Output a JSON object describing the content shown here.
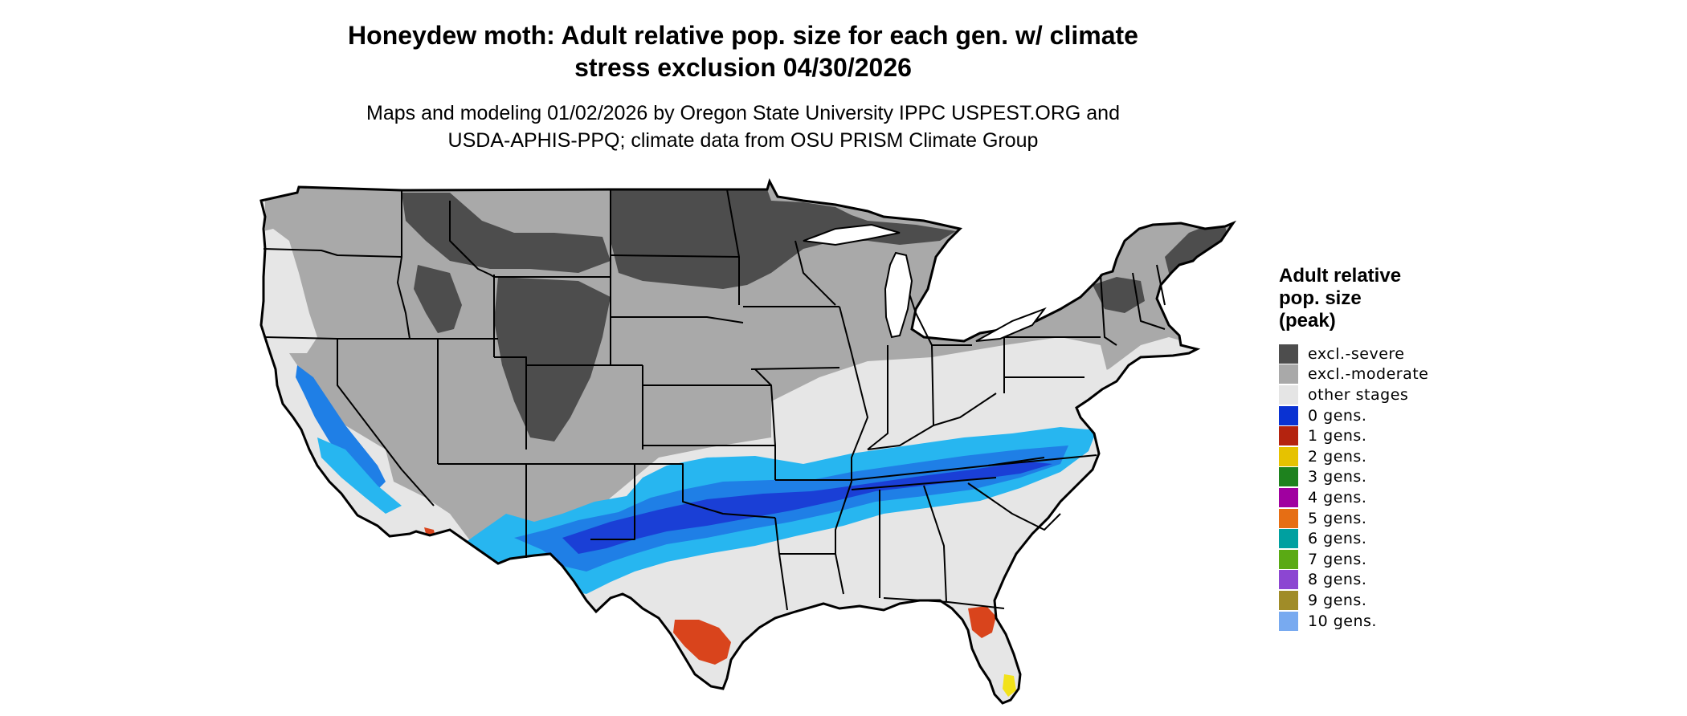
{
  "header": {
    "title_line1": "Honeydew moth: Adult relative pop. size for each gen. w/ climate",
    "title_line2": "stress exclusion 04/30/2026",
    "subtitle_line1": "Maps and modeling 01/02/2026 by Oregon State University IPPC USPEST.ORG and",
    "subtitle_line2": "USDA-APHIS-PPQ; climate data from OSU PRISM Climate Group"
  },
  "map": {
    "region": "conterminous United States",
    "colors": {
      "excl_severe": "#4d4d4d",
      "excl_moderate": "#a9a9a9",
      "other_stages": "#e6e6e6",
      "zero_gens_dark": "#1a3fd6",
      "zero_gens_mid": "#1f7fe6",
      "zero_gens_light": "#27b6f0",
      "one_gen": "#d9441c",
      "two_gens": "#f2e21a",
      "border": "#000000"
    }
  },
  "legend": {
    "title_line1": "Adult relative",
    "title_line2": "pop. size",
    "title_line3": "(peak)",
    "items": [
      {
        "label": "excl.-severe",
        "color": "#4d4d4d"
      },
      {
        "label": "excl.-moderate",
        "color": "#a9a9a9"
      },
      {
        "label": "other stages",
        "color": "#e5e5e5"
      },
      {
        "label": "0 gens.",
        "color": "#0a32d2"
      },
      {
        "label": "1 gens.",
        "color": "#b4230f"
      },
      {
        "label": "2 gens.",
        "color": "#e6c200"
      },
      {
        "label": "3 gens.",
        "color": "#1e821e"
      },
      {
        "label": "4 gens.",
        "color": "#a000a0"
      },
      {
        "label": "5 gens.",
        "color": "#e66e14"
      },
      {
        "label": "6 gens.",
        "color": "#00a0a0"
      },
      {
        "label": "7 gens.",
        "color": "#5aaa14"
      },
      {
        "label": "8 gens.",
        "color": "#8c46d2"
      },
      {
        "label": "9 gens.",
        "color": "#a08c28"
      },
      {
        "label": "10 gens.",
        "color": "#78aaf0"
      }
    ]
  }
}
